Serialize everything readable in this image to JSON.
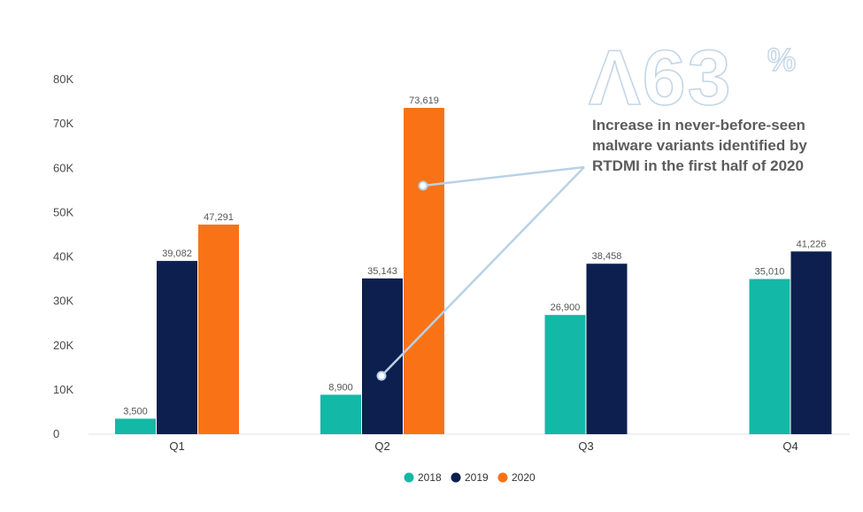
{
  "chart_data": {
    "type": "bar",
    "categories": [
      "Q1",
      "Q2",
      "Q3",
      "Q4"
    ],
    "series": [
      {
        "name": "2018",
        "color": "#14b8a6",
        "values": [
          3500,
          8900,
          26900,
          35010
        ],
        "labels": [
          "3,500",
          "8,900",
          "26,900",
          "35,010"
        ]
      },
      {
        "name": "2019",
        "color": "#0c1f4e",
        "values": [
          39082,
          35143,
          38458,
          41226
        ],
        "labels": [
          "39,082",
          "35,143",
          "38,458",
          "41,226"
        ]
      },
      {
        "name": "2020",
        "color": "#f97316",
        "values": [
          47291,
          73619,
          null,
          null
        ],
        "labels": [
          "47,291",
          "73,619",
          null,
          null
        ]
      }
    ],
    "ylim": [
      0,
      80000
    ],
    "yticks": [
      0,
      10000,
      20000,
      30000,
      40000,
      50000,
      60000,
      70000,
      80000
    ],
    "ytick_labels": [
      "0",
      "10K",
      "20K",
      "30K",
      "40K",
      "50K",
      "60K",
      "70K",
      "80K"
    ],
    "legend_position": "bottom-center",
    "annotation": {
      "stat": "Λ63",
      "percent": "%",
      "lines": [
        "Increase in never-before-seen",
        "malware variants identified by",
        "RTDMI in the first half of 2020"
      ],
      "pointer_color": "#b9d1e6"
    }
  }
}
